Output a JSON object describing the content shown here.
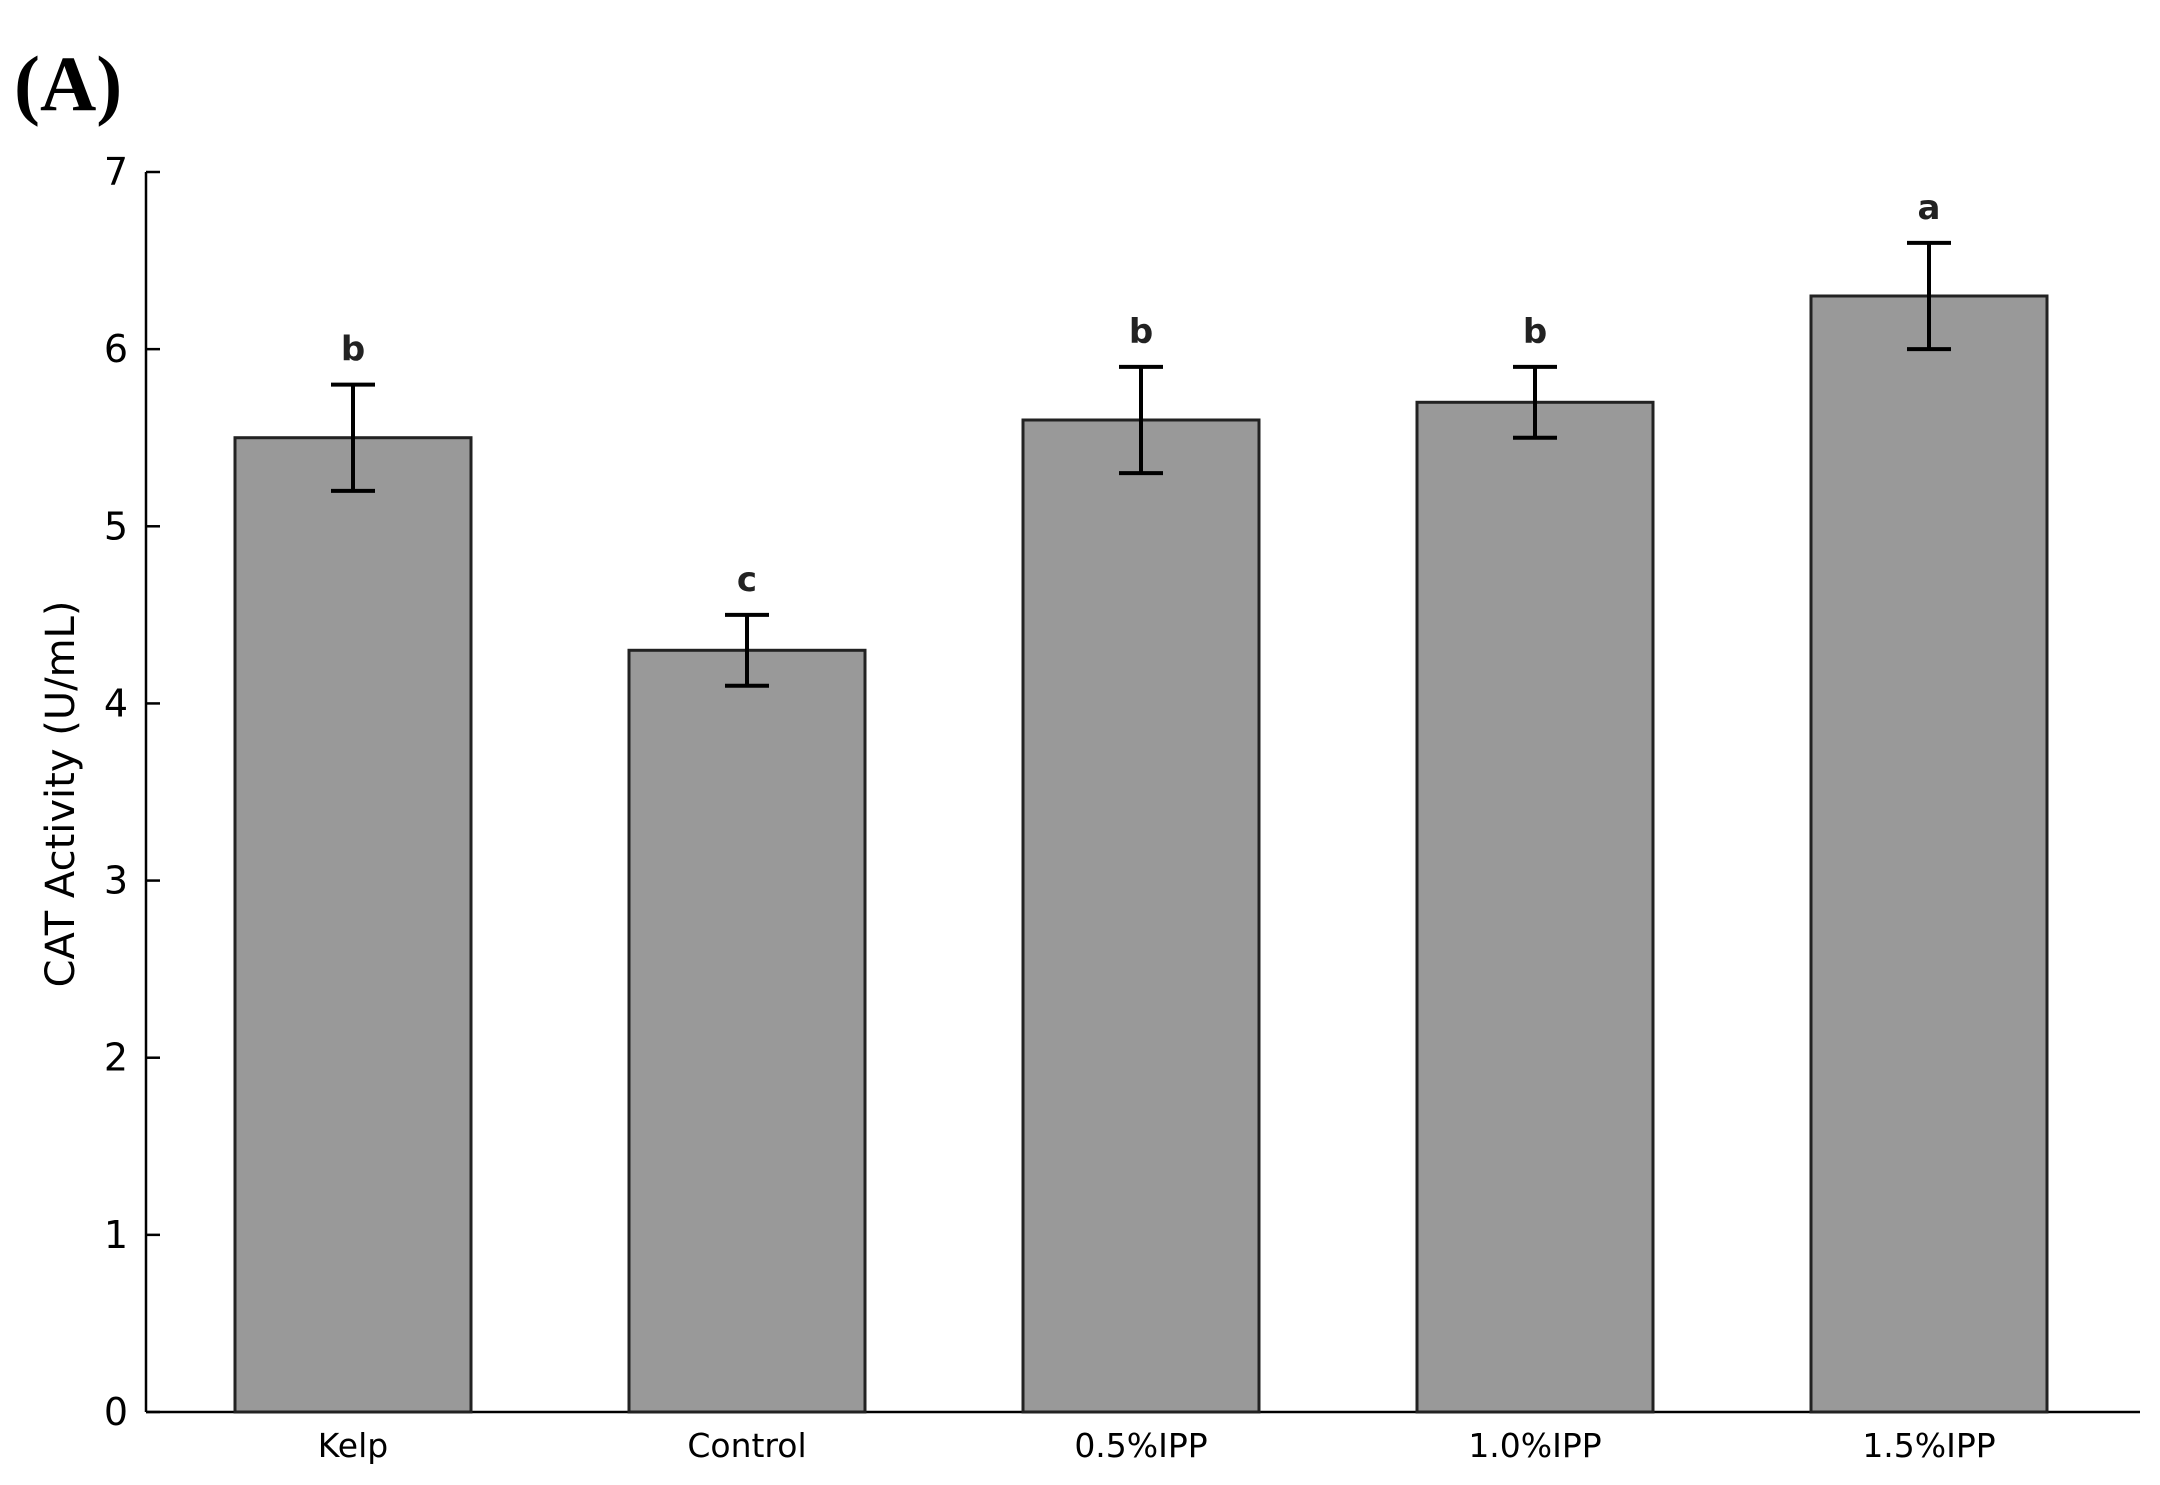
{
  "panel_label": "(A)",
  "chart_data": {
    "type": "bar",
    "categories": [
      "Kelp",
      "Control",
      "0.5%IPP",
      "1.0%IPP",
      "1.5%IPP"
    ],
    "values": [
      5.5,
      4.3,
      5.6,
      5.7,
      6.3
    ],
    "errors": [
      0.3,
      0.2,
      0.3,
      0.2,
      0.3
    ],
    "significance": [
      "b",
      "c",
      "b",
      "b",
      "a"
    ],
    "title": "",
    "xlabel": "",
    "ylabel": "CAT Activity (U/mL)",
    "ylim": [
      0,
      7
    ],
    "yticks": [
      0,
      1,
      2,
      3,
      4,
      5,
      6,
      7
    ],
    "bar_color": "#999999",
    "bar_edge_color": "#222222",
    "grid": false,
    "legend": "none"
  }
}
